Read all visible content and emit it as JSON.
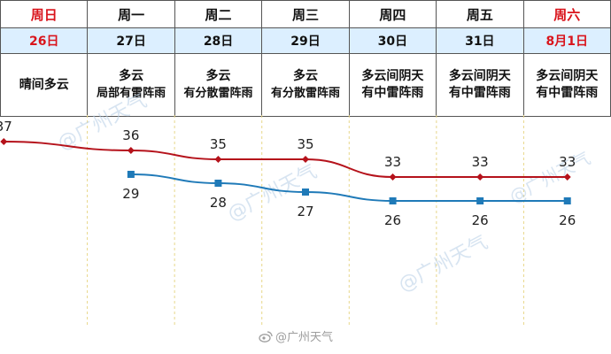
{
  "days": [
    {
      "day": "周日",
      "date": "26日",
      "weather": [
        "晴间多云"
      ],
      "weekend": true
    },
    {
      "day": "周一",
      "date": "27日",
      "weather": [
        "多云",
        "局部有雷阵雨"
      ],
      "weekend": false
    },
    {
      "day": "周二",
      "date": "28日",
      "weather": [
        "多云",
        "有分散雷阵雨"
      ],
      "weekend": false
    },
    {
      "day": "周三",
      "date": "29日",
      "weather": [
        "多云",
        "有分散雷阵雨"
      ],
      "weekend": false
    },
    {
      "day": "周四",
      "date": "30日",
      "weather": [
        "多云间阴天",
        "有中雷阵雨"
      ],
      "weekend": false
    },
    {
      "day": "周五",
      "date": "31日",
      "weather": [
        "多云间阴天",
        "有中雷阵雨"
      ],
      "weekend": false
    },
    {
      "day": "周六",
      "date": "8月1日",
      "weather": [
        "多云间阴天",
        "有中雷阵雨"
      ],
      "weekend": true
    }
  ],
  "chart_data": {
    "type": "line",
    "categories": [
      "26日",
      "27日",
      "28日",
      "29日",
      "30日",
      "31日",
      "8月1日"
    ],
    "series": [
      {
        "values": [
          37,
          36,
          35,
          35,
          33,
          33,
          33
        ],
        "color": "#b5121b",
        "marker": "diamond"
      },
      {
        "values": [
          null,
          29,
          28,
          27,
          26,
          26,
          26
        ],
        "color": "#1f7ab8",
        "marker": "square"
      }
    ],
    "data_labels": true,
    "grid": "vertical dashed"
  },
  "watermark": {
    "text": "@广州天气"
  },
  "source": {
    "text": "@广州天气"
  },
  "colors": {
    "weekend": "#d9141c",
    "date_row_bg": "#dcefff",
    "high": "#b5121b",
    "low": "#1f7ab8",
    "gridline": "#e8d78a"
  }
}
